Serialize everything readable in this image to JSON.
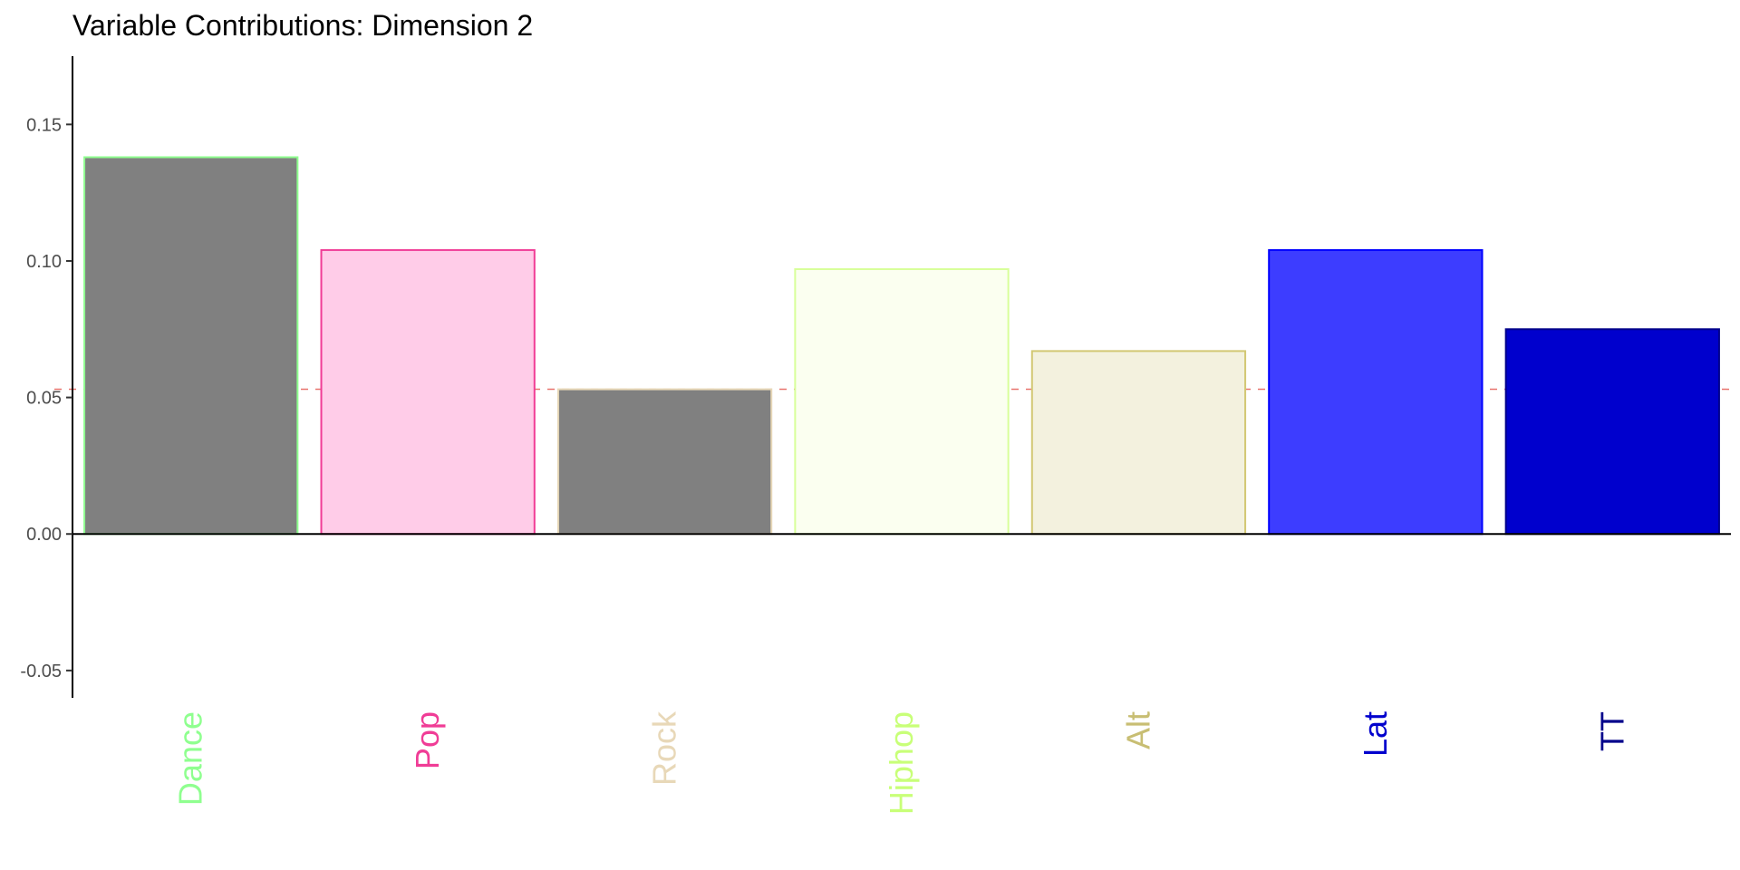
{
  "chart_data": {
    "type": "bar",
    "title": "Variable Contributions: Dimension 2",
    "xlabel": "",
    "ylabel": "",
    "categories": [
      "Dance",
      "Pop",
      "Rock",
      "Hiphop",
      "Alt",
      "Lat",
      "TT"
    ],
    "values": [
      0.138,
      0.104,
      0.053,
      0.097,
      0.067,
      0.104,
      0.075
    ],
    "bar_fill_colors": [
      "#808080",
      "#FFCCE8",
      "#808080",
      "#FBFFF0",
      "#F3F1DE",
      "#3D3DFF",
      "#0000CD"
    ],
    "bar_outline_colors": [
      "#8FFF8F",
      "#F03C96",
      "#E8D8B8",
      "#D8FF9A",
      "#D2C873",
      "#0000FF",
      "#00008B"
    ],
    "label_colors": [
      "#8FFF8F",
      "#F03C96",
      "#E8D8B8",
      "#C8FF78",
      "#C8BE73",
      "#0000CD",
      "#00008B"
    ],
    "reference_line": {
      "value": 0.053,
      "color": "#E8746E",
      "style": "dashed"
    },
    "ylim": [
      -0.06,
      0.175
    ],
    "y_ticks": [
      -0.05,
      0.0,
      0.05,
      0.1,
      0.15
    ],
    "y_tick_labels": [
      "-0.05",
      "0.00",
      "0.05",
      "0.10",
      "0.15"
    ],
    "grid": false,
    "legend": "none"
  }
}
